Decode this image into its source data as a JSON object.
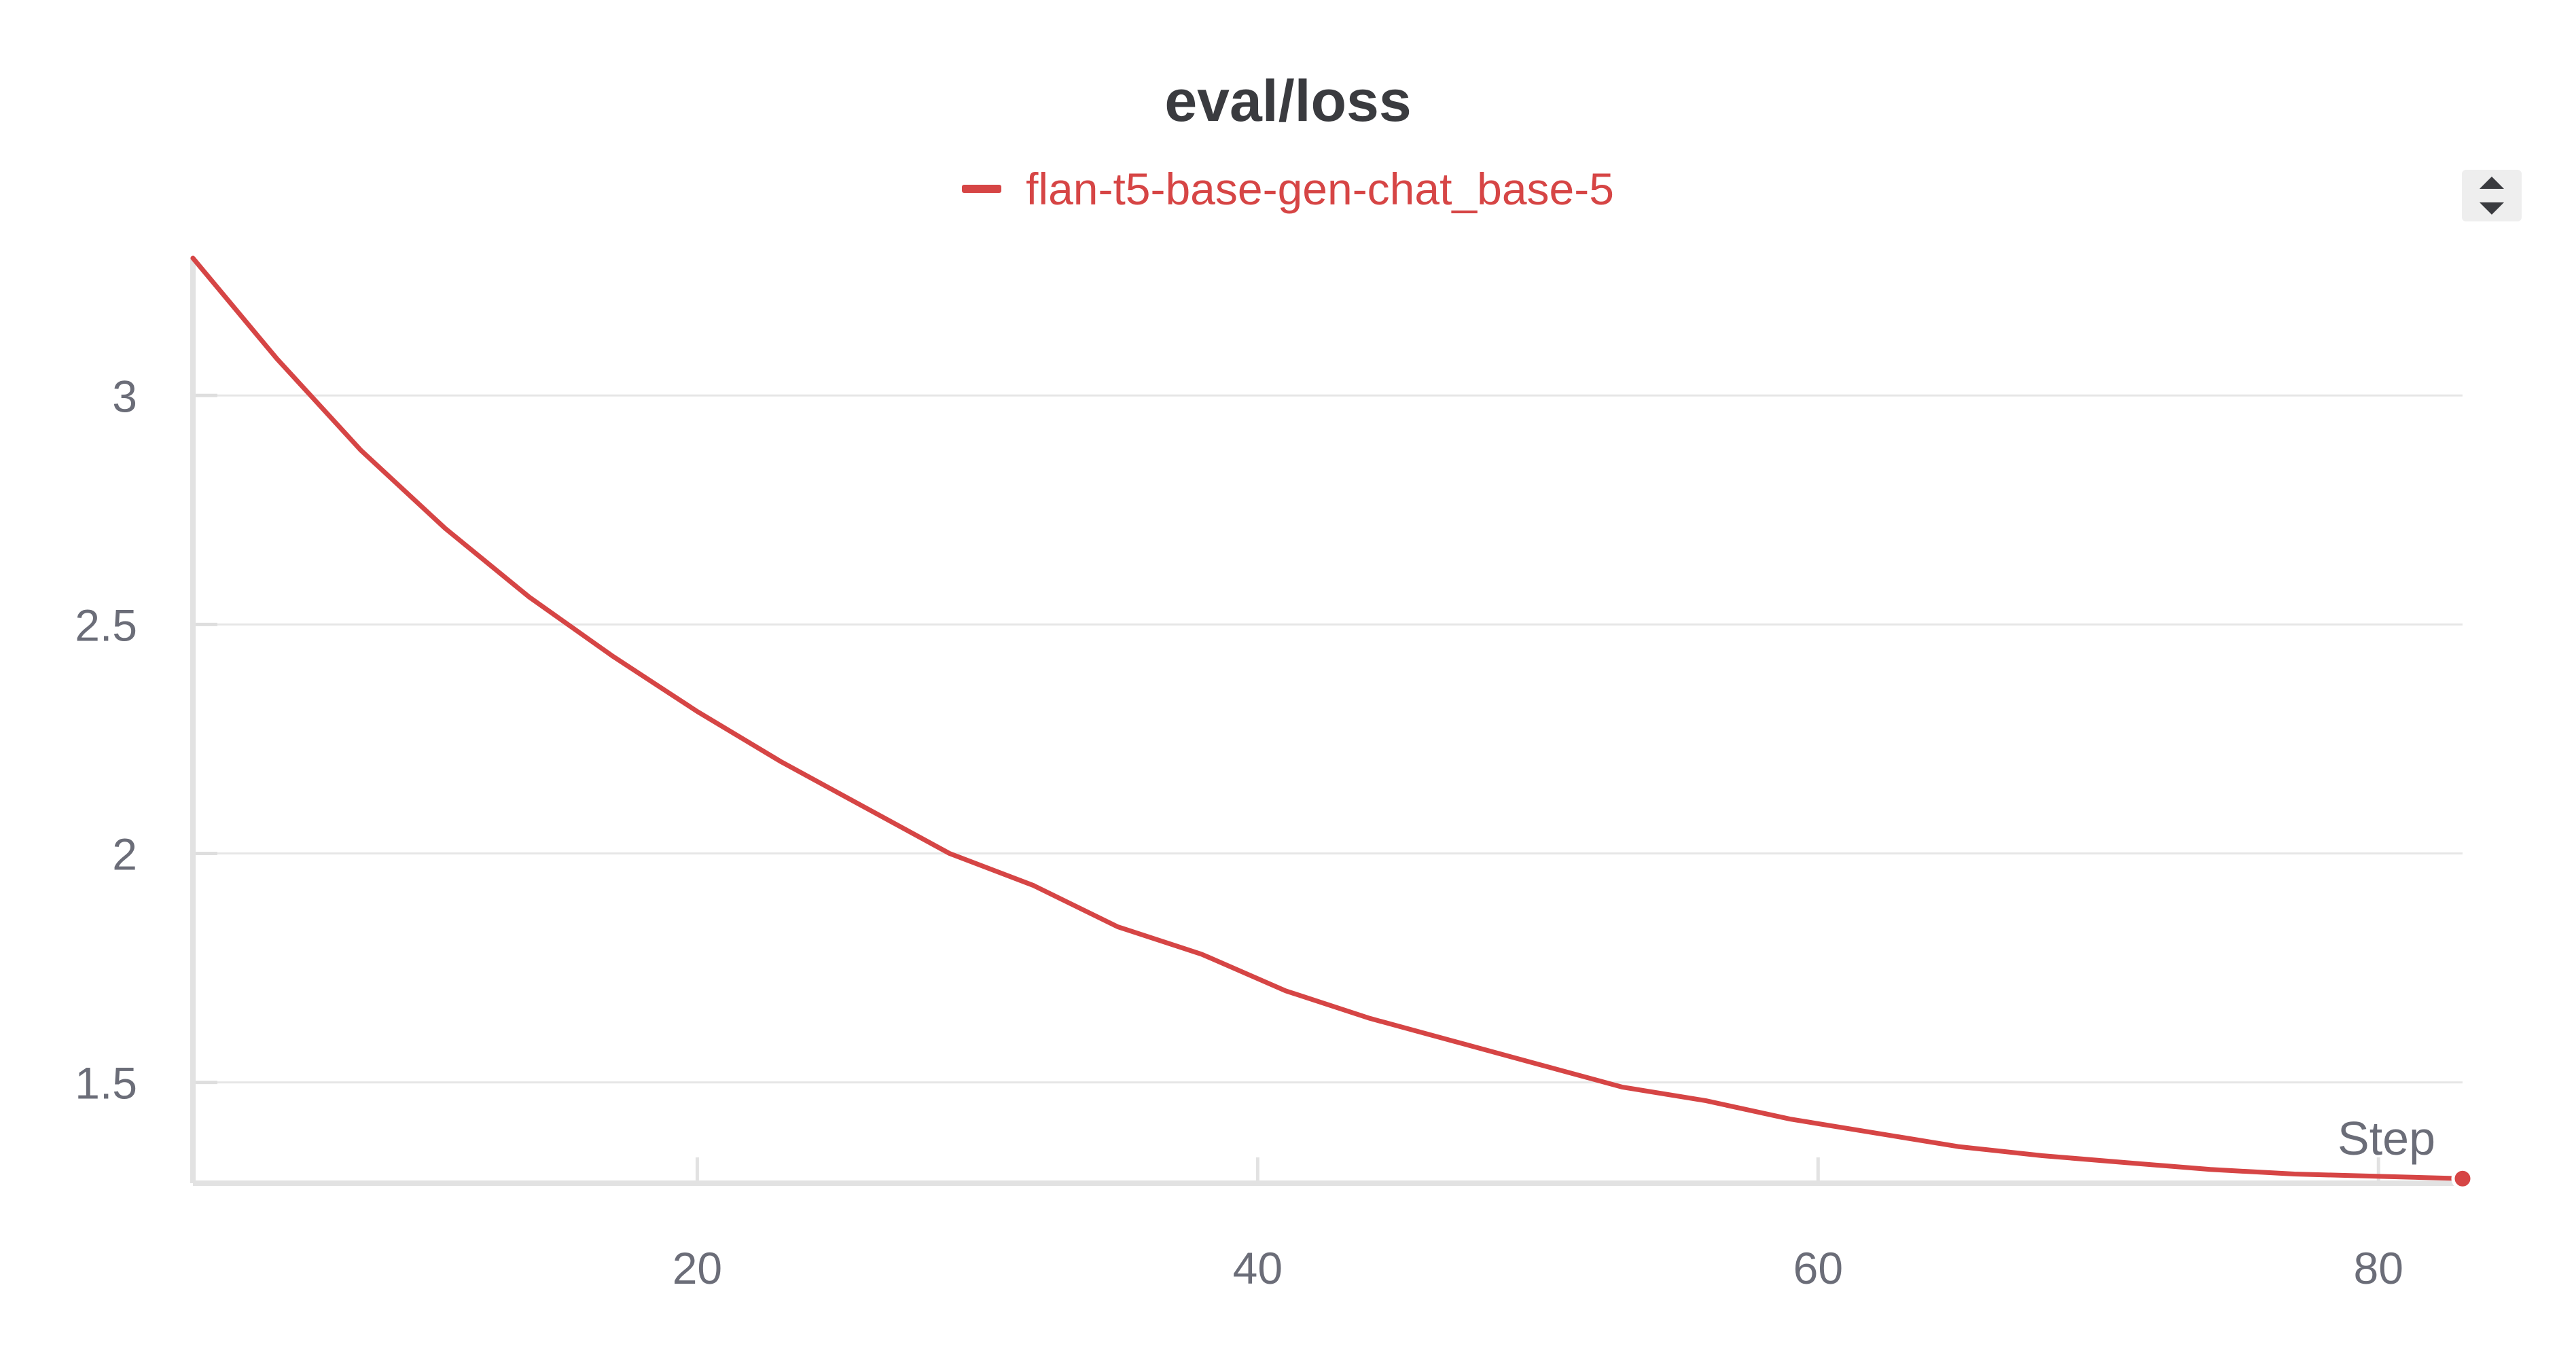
{
  "chart_data": {
    "type": "line",
    "title": "eval/loss",
    "xlabel": "Step",
    "ylabel": "",
    "xlim": [
      2,
      83
    ],
    "ylim": [
      1.28,
      3.3
    ],
    "xticks": [
      20,
      40,
      60,
      80
    ],
    "yticks": [
      1.5,
      2,
      2.5,
      3
    ],
    "grid": true,
    "legend_position": "top-center",
    "series": [
      {
        "name": "flan-t5-base-gen-chat_base-5",
        "color": "#d64545",
        "x": [
          2,
          5,
          8,
          11,
          14,
          17,
          20,
          23,
          26,
          29,
          32,
          35,
          38,
          41,
          44,
          47,
          50,
          53,
          56,
          59,
          62,
          65,
          68,
          71,
          74,
          77,
          80,
          83
        ],
        "y": [
          3.3,
          3.08,
          2.88,
          2.71,
          2.56,
          2.43,
          2.31,
          2.2,
          2.1,
          2.0,
          1.93,
          1.84,
          1.78,
          1.7,
          1.64,
          1.59,
          1.54,
          1.49,
          1.46,
          1.42,
          1.39,
          1.36,
          1.34,
          1.325,
          1.31,
          1.3,
          1.295,
          1.29
        ]
      }
    ]
  },
  "controls": {
    "legend_toggle_icon": "up-down-chevron-icon"
  }
}
